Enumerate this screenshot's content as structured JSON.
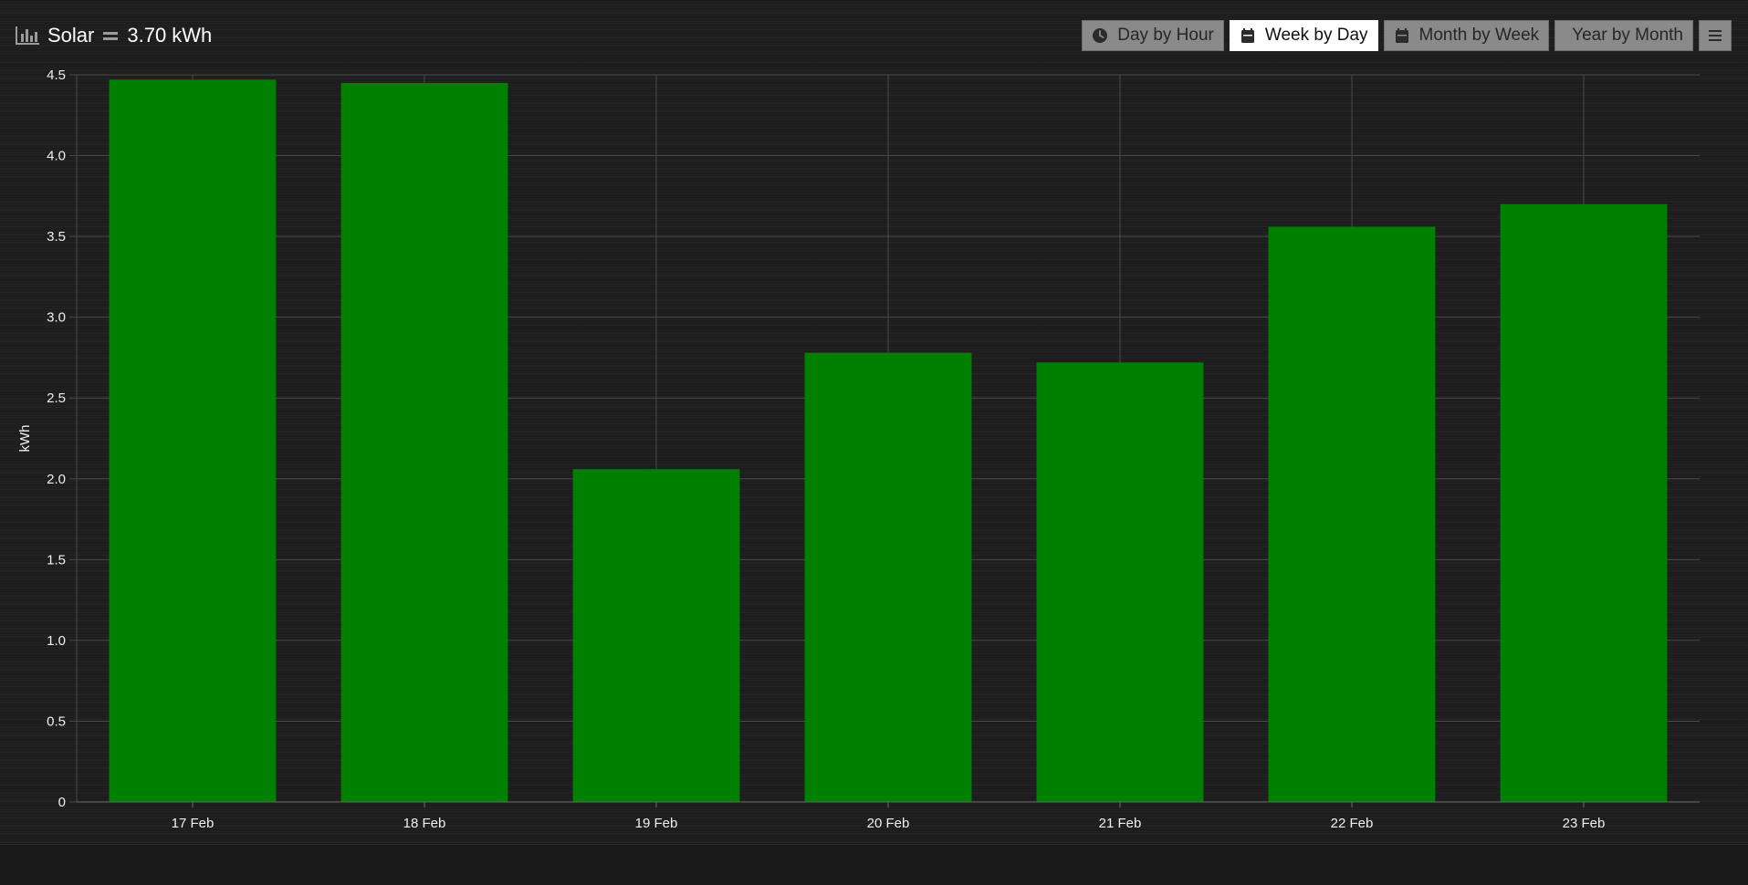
{
  "header": {
    "title": "Solar",
    "total": "3.70 kWh",
    "icon": "bar-chart-icon"
  },
  "toolbar": {
    "buttons": [
      {
        "label": "Day by Hour",
        "icon": "clock-icon",
        "active": false
      },
      {
        "label": "Week by Day",
        "icon": "calendar-icon",
        "active": true
      },
      {
        "label": "Month by Week",
        "icon": "calendar-icon",
        "active": false
      },
      {
        "label": "Year by Month",
        "icon": "",
        "active": false
      }
    ],
    "menu_icon": "menu-icon"
  },
  "colors": {
    "bar": "#008000",
    "grid": "#4a4a4a",
    "active_button": "#ffffff",
    "button": "#8a8a8a"
  },
  "chart_data": {
    "type": "bar",
    "categories": [
      "17 Feb",
      "18 Feb",
      "19 Feb",
      "20 Feb",
      "21 Feb",
      "22 Feb",
      "23 Feb"
    ],
    "series": [
      {
        "values": [
          4.47,
          4.45,
          2.06,
          2.78,
          2.72,
          3.56,
          3.7
        ]
      }
    ],
    "ylabel": "kWh",
    "ylim": [
      0,
      4.5
    ],
    "yticks": [
      "0",
      "0.5",
      "1.0",
      "1.5",
      "2.0",
      "2.5",
      "3.0",
      "3.5",
      "4.0",
      "4.5"
    ],
    "ytick_values": [
      0,
      0.5,
      1.0,
      1.5,
      2.0,
      2.5,
      3.0,
      3.5,
      4.0,
      4.5
    ],
    "grid": true
  }
}
